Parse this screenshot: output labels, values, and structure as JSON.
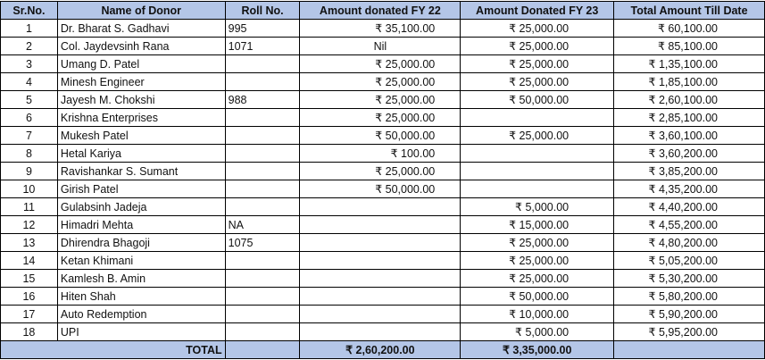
{
  "headers": [
    "Sr.No.",
    "Name of Donor",
    "Roll No.",
    "Amount donated FY 22",
    "Amount Donated FY 23",
    "Total Amount  Till Date"
  ],
  "rows": [
    {
      "sr": "1",
      "name": "Dr. Bharat  S. Gadhavi",
      "roll": "995",
      "fy22": "₹ 35,100.00",
      "fy23": "₹ 25,000.00",
      "total": "₹ 60,100.00"
    },
    {
      "sr": "2",
      "name": "Col. Jaydevsinh Rana",
      "roll": "1071",
      "fy22": "Nil",
      "fy23": "₹ 25,000.00",
      "total": "₹ 85,100.00"
    },
    {
      "sr": "3",
      "name": "Umang D. Patel",
      "roll": "",
      "fy22": "₹ 25,000.00",
      "fy23": "₹ 25,000.00",
      "total": "₹ 1,35,100.00"
    },
    {
      "sr": "4",
      "name": "Minesh Engineer",
      "roll": "",
      "fy22": "₹ 25,000.00",
      "fy23": "₹ 25,000.00",
      "total": "₹ 1,85,100.00"
    },
    {
      "sr": "5",
      "name": "Jayesh M. Chokshi",
      "roll": "988",
      "fy22": "₹ 25,000.00",
      "fy23": "₹ 50,000.00",
      "total": "₹ 2,60,100.00"
    },
    {
      "sr": "6",
      "name": "Krishna Enterprises",
      "roll": "",
      "fy22": "₹ 25,000.00",
      "fy23": "",
      "total": "₹ 2,85,100.00"
    },
    {
      "sr": "7",
      "name": "Mukesh Patel",
      "roll": "",
      "fy22": "₹ 50,000.00",
      "fy23": "₹ 25,000.00",
      "total": "₹ 3,60,100.00"
    },
    {
      "sr": "8",
      "name": "Hetal Kariya",
      "roll": "",
      "fy22": "₹ 100.00",
      "fy23": "",
      "total": "₹ 3,60,200.00"
    },
    {
      "sr": "9",
      "name": "Ravishankar S. Sumant",
      "roll": "",
      "fy22": "₹ 25,000.00",
      "fy23": "",
      "total": "₹ 3,85,200.00"
    },
    {
      "sr": "10",
      "name": "Girish Patel",
      "roll": "",
      "fy22": "₹ 50,000.00",
      "fy23": "",
      "total": "₹ 4,35,200.00"
    },
    {
      "sr": "11",
      "name": "Gulabsinh Jadeja",
      "roll": "",
      "fy22": "",
      "fy23": "₹ 5,000.00",
      "total": "₹ 4,40,200.00"
    },
    {
      "sr": "12",
      "name": "Himadri Mehta",
      "roll": "NA",
      "fy22": "",
      "fy23": "₹ 15,000.00",
      "total": "₹ 4,55,200.00"
    },
    {
      "sr": "13",
      "name": "Dhirendra Bhagoji",
      "roll": "1075",
      "fy22": "",
      "fy23": "₹ 25,000.00",
      "total": "₹ 4,80,200.00"
    },
    {
      "sr": "14",
      "name": "Ketan Khimani",
      "roll": "",
      "fy22": "",
      "fy23": "₹ 25,000.00",
      "total": "₹ 5,05,200.00"
    },
    {
      "sr": "15",
      "name": "Kamlesh B. Amin",
      "roll": "",
      "fy22": "",
      "fy23": "₹ 25,000.00",
      "total": "₹ 5,30,200.00"
    },
    {
      "sr": "16",
      "name": "Hiten Shah",
      "roll": "",
      "fy22": "",
      "fy23": "₹ 50,000.00",
      "total": "₹ 5,80,200.00"
    },
    {
      "sr": "17",
      "name": "Auto Redemption",
      "roll": "",
      "fy22": "",
      "fy23": "₹ 10,000.00",
      "total": "₹ 5,90,200.00"
    },
    {
      "sr": "18",
      "name": "UPI",
      "roll": "",
      "fy22": "",
      "fy23": "₹ 5,000.00",
      "total": "₹ 5,95,200.00"
    }
  ],
  "total_row": {
    "label": "TOTAL",
    "fy22": "₹ 2,60,200.00",
    "fy23": "₹ 3,35,000.00"
  },
  "colors": {
    "header_bg": "#b4c6e7"
  }
}
